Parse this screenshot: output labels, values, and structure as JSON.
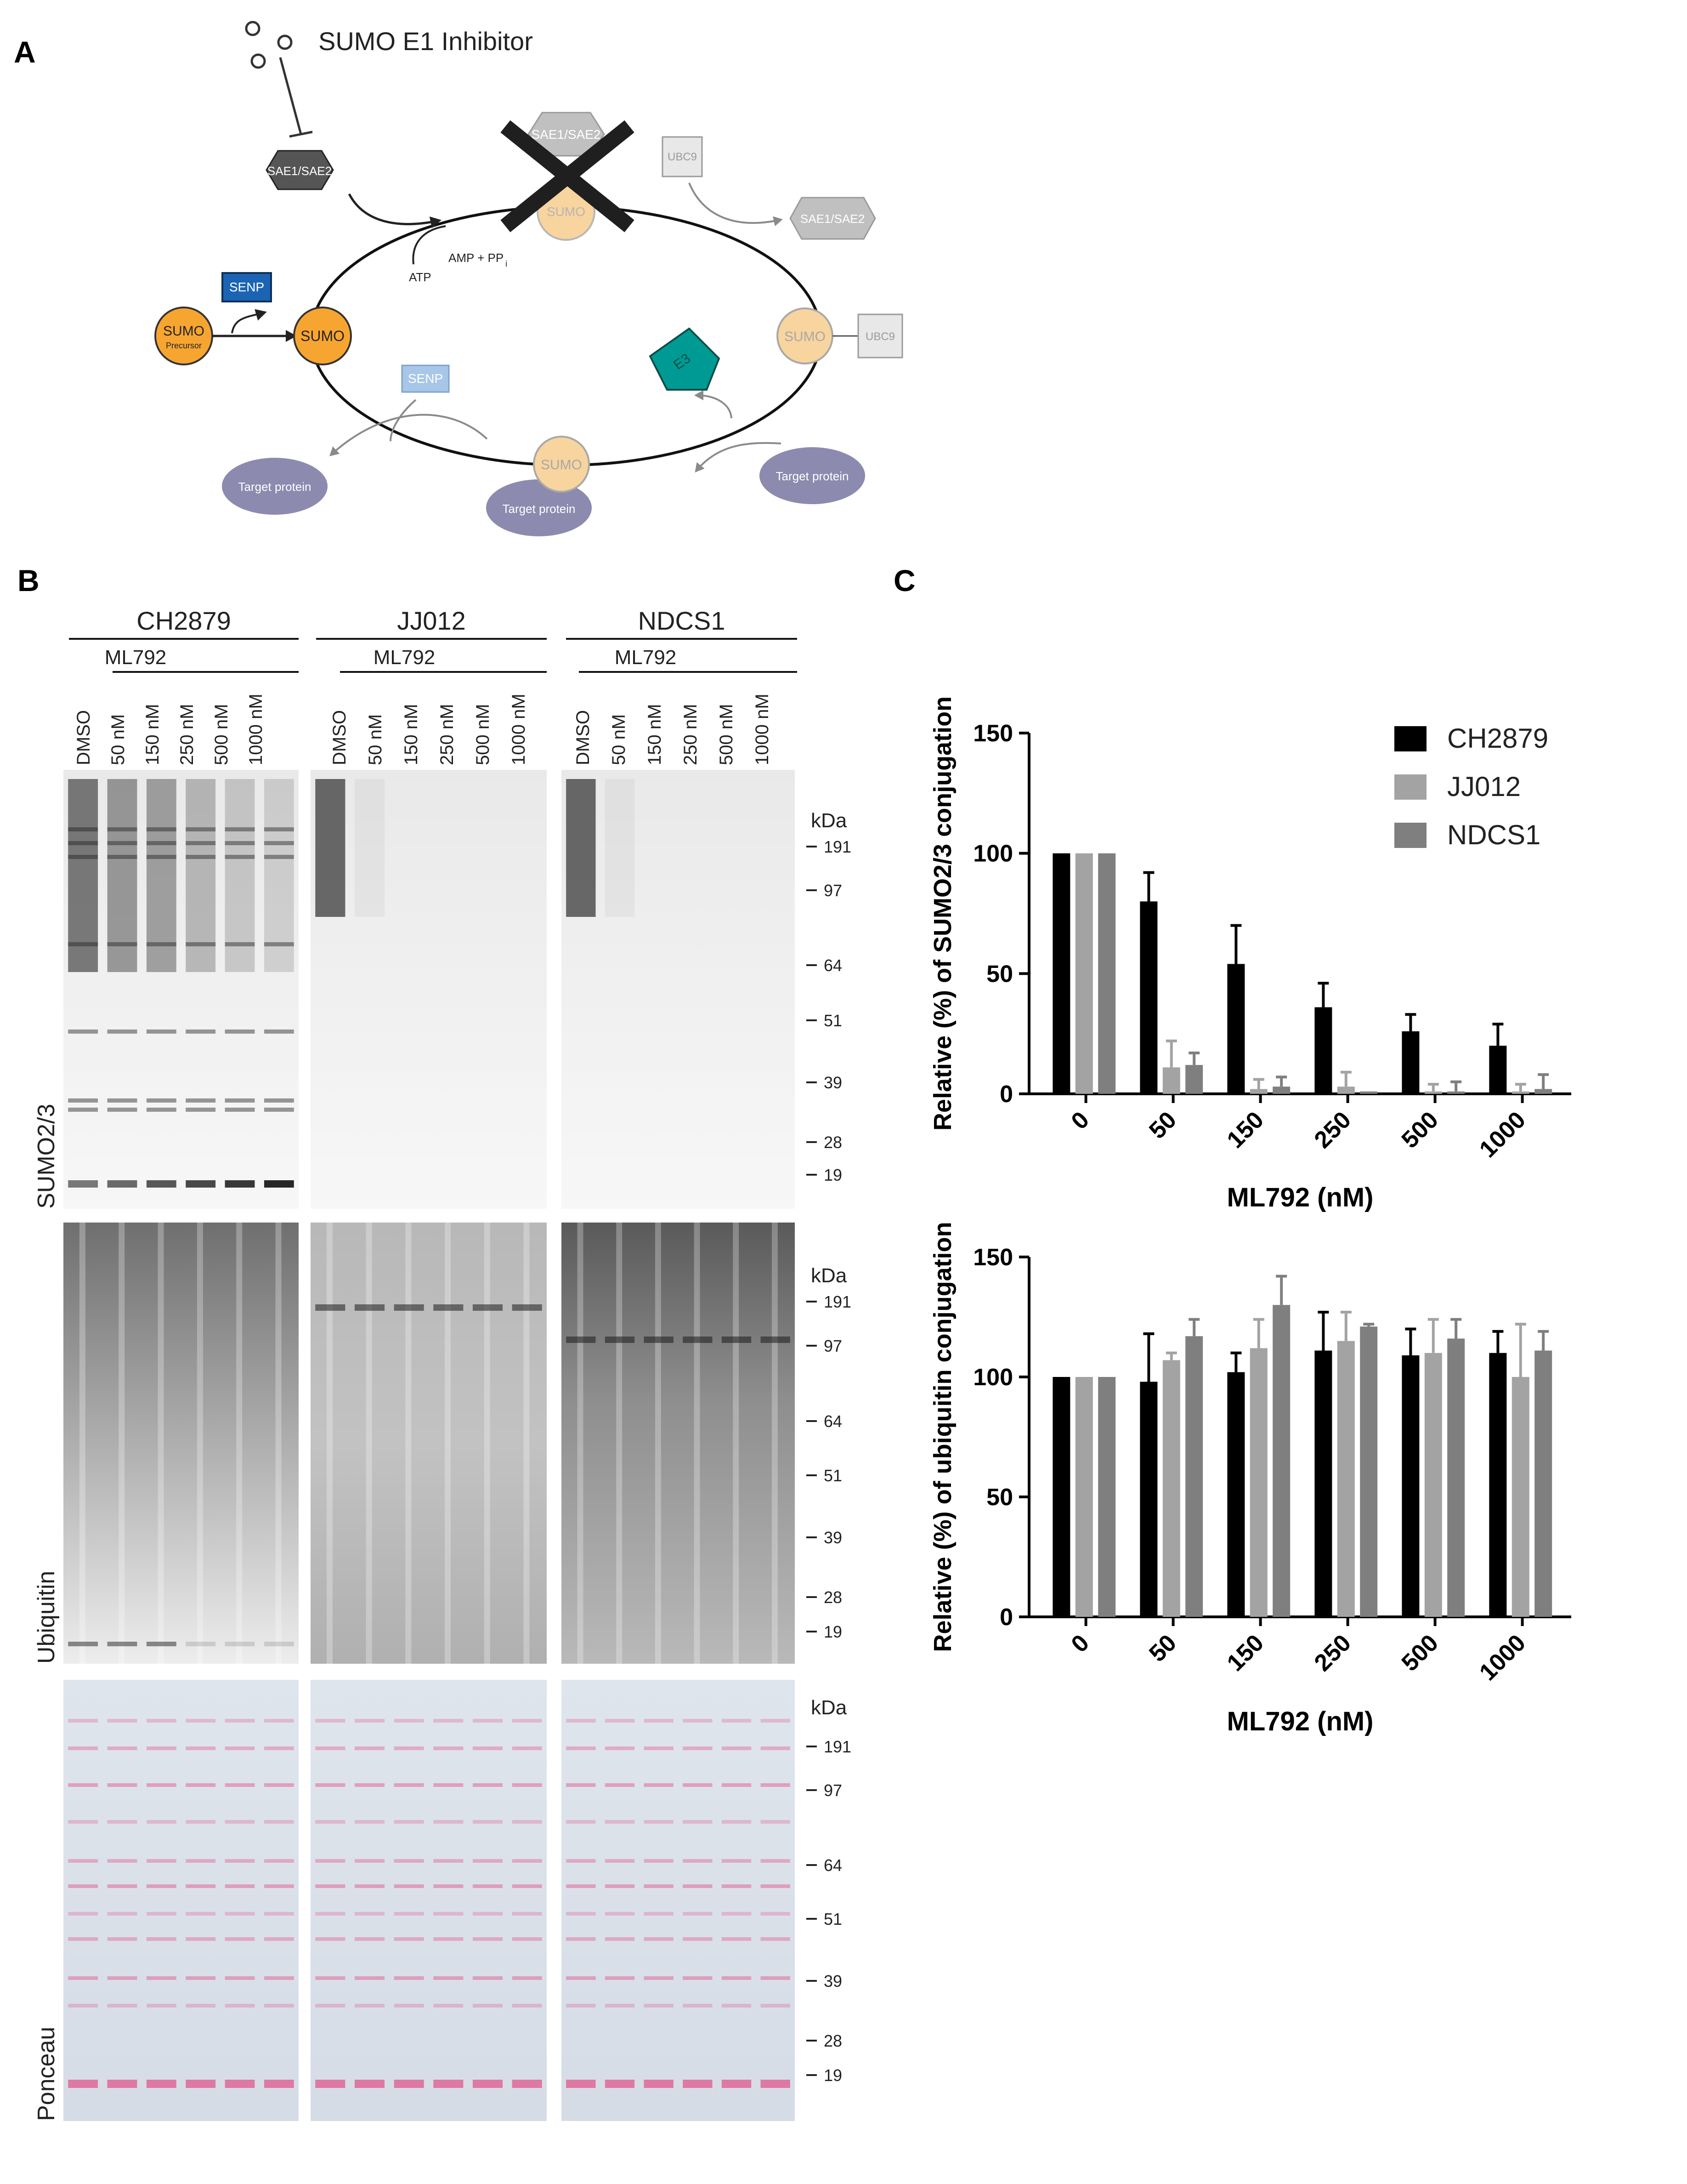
{
  "panels": {
    "a": "A",
    "b": "B",
    "c": "C"
  },
  "panel_a": {
    "inhibitor_label": "SUMO E1 Inhibitor",
    "sae_label": "SAE1/SAE2",
    "senp_label": "SENP",
    "sumo_label": "SUMO",
    "precursor_label": "Precursor",
    "atp_label": "ATP",
    "amp_label": "AMP + PP",
    "amp_sub": "i",
    "ubc9_label": "UBC9",
    "e3_label": "E3",
    "target_label": "Target protein"
  },
  "panel_b": {
    "cell_lines": [
      "CH2879",
      "JJ012",
      "NDCS1"
    ],
    "treatment": "ML792",
    "lanes": [
      "DMSO",
      "50 nM",
      "150 nM",
      "250 nM",
      "500 nM",
      "1000 nM"
    ],
    "rows": [
      "SUMO2/3",
      "Ubiquitin",
      "Ponceau"
    ],
    "kda_label": "kDa",
    "markers": [
      "191",
      "97",
      "64",
      "51",
      "39",
      "28",
      "19"
    ]
  },
  "chart_data": [
    {
      "type": "bar",
      "xlabel": "ML792 (nM)",
      "ylabel": "Relative (%) of SUMO2/3 conjugation",
      "categories": [
        "0",
        "50",
        "150",
        "250",
        "500",
        "1000"
      ],
      "ylim": [
        0,
        150
      ],
      "yticks": [
        0,
        50,
        100,
        150
      ],
      "legend": "top-right",
      "series": [
        {
          "name": "CH2879",
          "color": "#000000",
          "values": [
            100,
            80,
            54,
            36,
            26,
            20
          ],
          "errors": [
            0,
            12,
            16,
            10,
            7,
            9
          ]
        },
        {
          "name": "JJ012",
          "color": "#a3a3a3",
          "values": [
            100,
            11,
            2,
            3,
            1,
            1
          ],
          "errors": [
            0,
            11,
            4,
            6,
            3,
            3
          ]
        },
        {
          "name": "NDCS1",
          "color": "#7f7f7f",
          "values": [
            100,
            12,
            3,
            1,
            1,
            2
          ],
          "errors": [
            0,
            5,
            4,
            0,
            4,
            6
          ]
        }
      ]
    },
    {
      "type": "bar",
      "xlabel": "ML792 (nM)",
      "ylabel": "Relative (%) of ubiquitin conjugation",
      "categories": [
        "0",
        "50",
        "150",
        "250",
        "500",
        "1000"
      ],
      "ylim": [
        0,
        150
      ],
      "yticks": [
        0,
        50,
        100,
        150
      ],
      "series": [
        {
          "name": "CH2879",
          "color": "#000000",
          "values": [
            100,
            98,
            102,
            111,
            109,
            110
          ],
          "errors": [
            0,
            20,
            8,
            16,
            11,
            9
          ]
        },
        {
          "name": "JJ012",
          "color": "#a3a3a3",
          "values": [
            100,
            107,
            112,
            115,
            110,
            100
          ],
          "errors": [
            0,
            3,
            12,
            12,
            14,
            22
          ]
        },
        {
          "name": "NDCS1",
          "color": "#7f7f7f",
          "values": [
            100,
            117,
            130,
            121,
            116,
            111
          ],
          "errors": [
            0,
            7,
            12,
            1,
            8,
            8
          ]
        }
      ]
    }
  ]
}
